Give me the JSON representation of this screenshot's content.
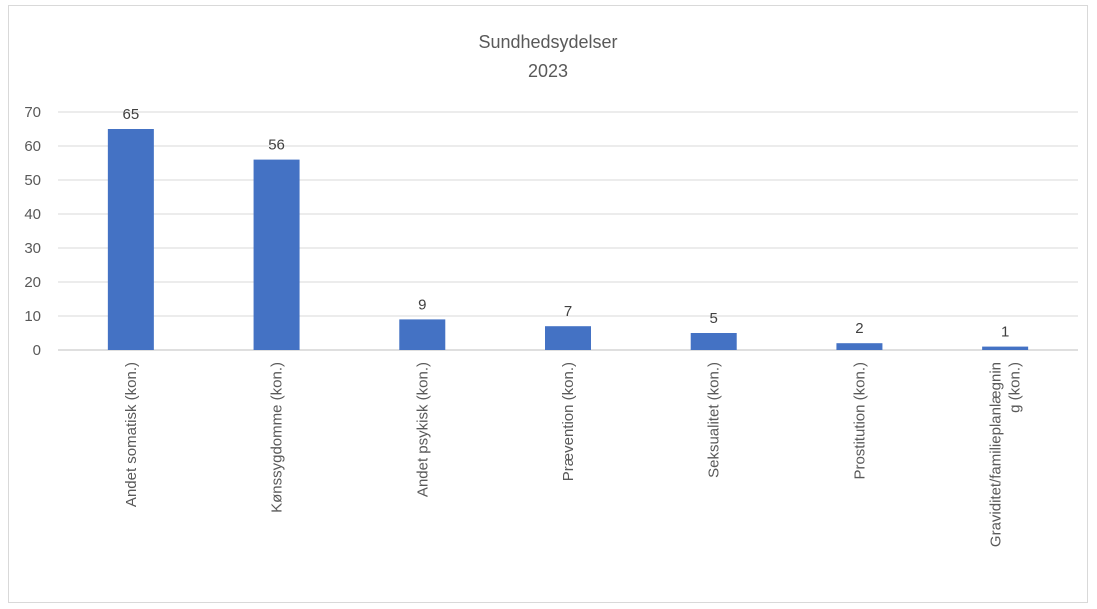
{
  "chart_data": {
    "type": "bar",
    "title": "Sundhedsydelser",
    "subtitle": "2023",
    "categories": [
      [
        "Andet somatisk (kon.)"
      ],
      [
        "Kønssygdomme (kon.)"
      ],
      [
        "Andet psykisk (kon.)"
      ],
      [
        "Prævention (kon.)"
      ],
      [
        "Seksualitet (kon.)"
      ],
      [
        "Prostitution (kon.)"
      ],
      [
        "Graviditet/familieplanlægnin",
        "g (kon.)"
      ]
    ],
    "values": [
      65,
      56,
      9,
      7,
      5,
      2,
      1
    ],
    "data_labels": [
      "65",
      "56",
      "9",
      "7",
      "5",
      "2",
      "1"
    ],
    "yticks": [
      "0",
      "10",
      "20",
      "30",
      "40",
      "50",
      "60",
      "70"
    ],
    "ylim": [
      0,
      70
    ],
    "xlabel": "",
    "ylabel": "",
    "grid": true,
    "legend": "none",
    "colors": {
      "bar": "#4472c4",
      "grid": "#d9d9d9"
    }
  }
}
